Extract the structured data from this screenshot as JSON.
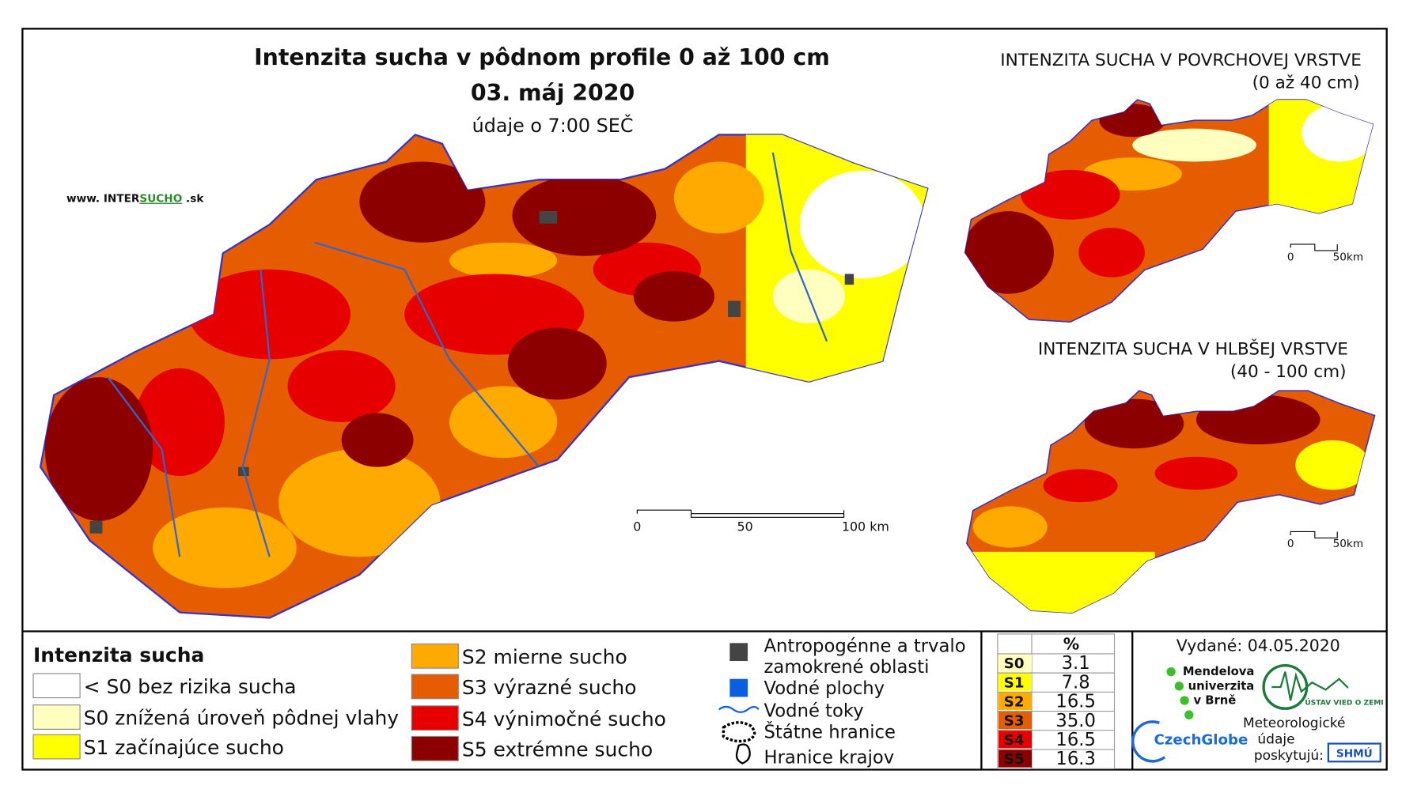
{
  "title": "Intenzita sucha v pôdnom profile 0 až 100 cm",
  "date": "03. máj 2020",
  "note": "údaje o 7:00 SEČ",
  "website": {
    "prefix": "www. INTER",
    "highlight": "SUCHO",
    "suffix": " .sk"
  },
  "scale_main": [
    "0",
    "50",
    "100 km"
  ],
  "insets": [
    {
      "title": "INTENZITA SUCHA V POVRCHOVEJ VRSTVE",
      "subtitle": "(0 až 40 cm)",
      "scale": [
        "0",
        "50km"
      ]
    },
    {
      "title": "INTENZITA SUCHA V HLBŠEJ VRSTVE",
      "subtitle": "(40 - 100 cm)",
      "scale": [
        "0",
        "50km"
      ]
    }
  ],
  "legend": {
    "title": "Intenzita sucha",
    "items": [
      {
        "label": "< S0 bez rizika sucha",
        "color": "#ffffff"
      },
      {
        "label": "S0 znížená úroveň pôdnej vlahy",
        "color": "#ffffc0"
      },
      {
        "label": "S1 začínajúce sucho",
        "color": "#ffff00"
      },
      {
        "label": "S2 mierne sucho",
        "color": "#ffaa00"
      },
      {
        "label": "S3 výrazné sucho",
        "color": "#e65c00"
      },
      {
        "label": "S4 výnimočné sucho",
        "color": "#e60000"
      },
      {
        "label": "S5 extrémne sucho",
        "color": "#8c0000"
      }
    ]
  },
  "other_legend": {
    "anthropogenic": [
      "Antropogénne a trvalo",
      "zamokrené oblasti"
    ],
    "water_bodies": "Vodné plochy",
    "rivers": "Vodné toky",
    "state_border": "Štátne hranice",
    "region_border": "Hranice krajov"
  },
  "table": {
    "header": "%",
    "rows": [
      [
        "S0",
        "3.1"
      ],
      [
        "S1",
        "7.8"
      ],
      [
        "S2",
        "16.5"
      ],
      [
        "S3",
        "35.0"
      ],
      [
        "S4",
        "16.5"
      ],
      [
        "S5",
        "16.3"
      ]
    ]
  },
  "issued": "Vydané: 04.05.2020",
  "logos": {
    "mendel": [
      "Mendelova",
      "univerzita",
      "v Brně"
    ],
    "czechglobe": "CzechGlobe",
    "ustav": "ÚSTAV VIED O ZEMI",
    "meteo": [
      "Meteorologické",
      "údaje",
      "poskytujú:"
    ],
    "shmu": "SHMÚ"
  }
}
